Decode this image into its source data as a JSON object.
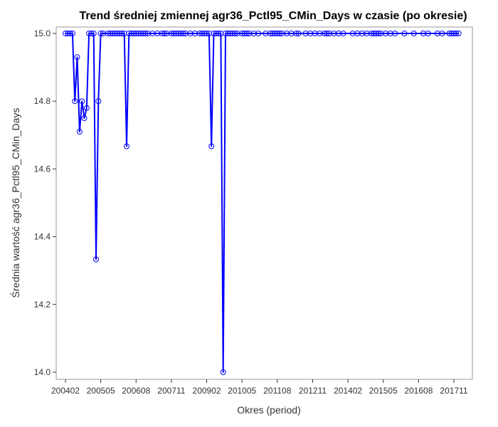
{
  "chart_data": {
    "type": "line",
    "title": "Trend średniej zmiennej agr36_Pctl95_CMin_Days w czasie (po okresie)",
    "xlabel": "Okres (period)",
    "ylabel": "Średnia wartość agr36_Pctl95_CMin_Days",
    "x_ticks": [
      "200402",
      "200505",
      "200608",
      "200711",
      "200902",
      "201005",
      "201108",
      "201211",
      "201402",
      "201505",
      "201608",
      "201711"
    ],
    "y_ticks": [
      "14.0",
      "14.2",
      "14.4",
      "14.6",
      "14.8",
      "15.0"
    ],
    "ylim": [
      14.0,
      15.0
    ],
    "xlim": [
      "200401",
      "201802"
    ],
    "grid": false,
    "colors": {
      "line": "#0000ff",
      "marker": "#0000ff"
    },
    "series": [
      {
        "x": [
          "200402",
          "200403",
          "200404",
          "200405",
          "200406",
          "200407",
          "200408",
          "200409",
          "200410",
          "200411",
          "200412",
          "200501",
          "200502",
          "200503",
          "200504",
          "200505",
          "200506",
          "200508",
          "200509",
          "200510",
          "200511",
          "200512",
          "200601",
          "200602",
          "200603",
          "200604",
          "200605",
          "200606",
          "200607",
          "200608",
          "200609",
          "200610",
          "200611",
          "200612",
          "200701",
          "200703",
          "200705",
          "200707",
          "200708",
          "200709",
          "200711",
          "200712",
          "200801",
          "200802",
          "200803",
          "200804",
          "200805",
          "200807",
          "200809",
          "200811",
          "200812",
          "200901",
          "200902",
          "200903",
          "200904",
          "200905",
          "200906",
          "200907",
          "200908",
          "200909",
          "200910",
          "200911",
          "200912",
          "201001",
          "201002",
          "201003",
          "201005",
          "201006",
          "201007",
          "201008",
          "201010",
          "201012",
          "201103",
          "201105",
          "201106",
          "201107",
          "201108",
          "201109",
          "201110",
          "201112",
          "201202",
          "201204",
          "201205",
          "201208",
          "201210",
          "201212",
          "201302",
          "201304",
          "201305",
          "201306",
          "201308",
          "201310",
          "201312",
          "201404",
          "201406",
          "201408",
          "201410",
          "201412",
          "201501",
          "201502",
          "201503",
          "201504",
          "201506",
          "201508",
          "201510",
          "201602",
          "201606",
          "201610",
          "201612",
          "201704",
          "201706",
          "201709",
          "201710",
          "201711",
          "201712",
          "201801"
        ],
        "values": [
          15.0,
          15.0,
          15.0,
          15.0,
          14.8,
          14.93,
          14.71,
          14.8,
          14.75,
          14.78,
          15.0,
          15.0,
          15.0,
          14.333,
          14.8,
          15.0,
          15.0,
          15.0,
          15.0,
          15.0,
          15.0,
          15.0,
          15.0,
          15.0,
          15.0,
          14.667,
          15.0,
          15.0,
          15.0,
          15.0,
          15.0,
          15.0,
          15.0,
          15.0,
          15.0,
          15.0,
          15.0,
          15.0,
          15.0,
          15.0,
          15.0,
          15.0,
          15.0,
          15.0,
          15.0,
          15.0,
          15.0,
          15.0,
          15.0,
          15.0,
          15.0,
          15.0,
          15.0,
          15.0,
          14.667,
          15.0,
          15.0,
          15.0,
          15.0,
          14.0,
          15.0,
          15.0,
          15.0,
          15.0,
          15.0,
          15.0,
          15.0,
          15.0,
          15.0,
          15.0,
          15.0,
          15.0,
          15.0,
          15.0,
          15.0,
          15.0,
          15.0,
          15.0,
          15.0,
          15.0,
          15.0,
          15.0,
          15.0,
          15.0,
          15.0,
          15.0,
          15.0,
          15.0,
          15.0,
          15.0,
          15.0,
          15.0,
          15.0,
          15.0,
          15.0,
          15.0,
          15.0,
          15.0,
          15.0,
          15.0,
          15.0,
          15.0,
          15.0,
          15.0,
          15.0,
          15.0,
          15.0,
          15.0,
          15.0,
          15.0,
          15.0,
          15.0,
          15.0,
          15.0,
          15.0,
          15.0
        ]
      }
    ]
  }
}
